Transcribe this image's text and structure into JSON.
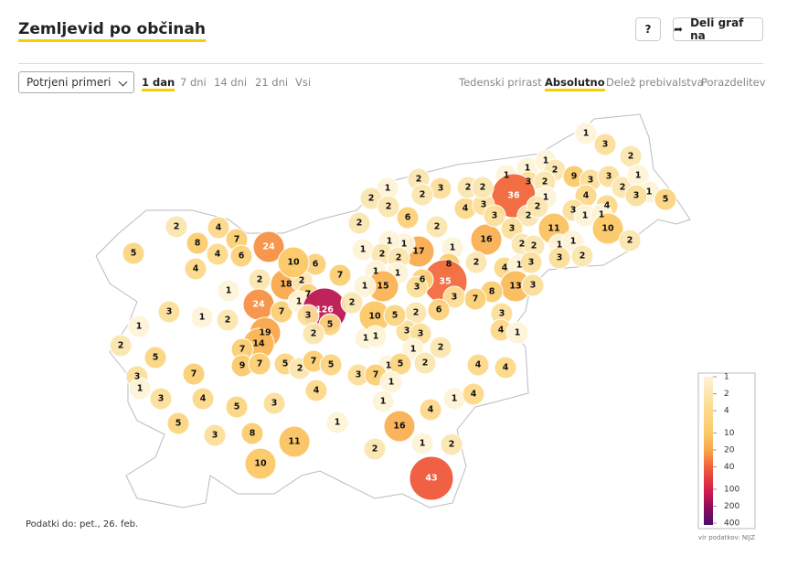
{
  "header": {
    "title": "Zemljevid po občinah",
    "help": "?",
    "share": "Deli graf na"
  },
  "controls": {
    "select": "Potrjeni primeri",
    "periods": [
      "1 dan",
      "7 dni",
      "14 dni",
      "21 dni",
      "Vsi"
    ],
    "views": [
      "Tedenski prirast",
      "Absolutno",
      "Delež prebivalstva",
      "Porazdelitev"
    ]
  },
  "map": {
    "type": "choropleth",
    "values": [
      1,
      3,
      2,
      1,
      1,
      1,
      2,
      3,
      2,
      9,
      3,
      3,
      2,
      1,
      1,
      5,
      3,
      4,
      4,
      3,
      36,
      1,
      2,
      2,
      11,
      3,
      2,
      2,
      1,
      1,
      1,
      1,
      10,
      2,
      2,
      3,
      16,
      4,
      1,
      3,
      13,
      3,
      8,
      7,
      3,
      4,
      1,
      2,
      1,
      8,
      35,
      3,
      6,
      2,
      3,
      3,
      1,
      2,
      4,
      3,
      2,
      2,
      3,
      2,
      17,
      6,
      3,
      2,
      2,
      6,
      1,
      2,
      2,
      2,
      1,
      1,
      1,
      2,
      2,
      1,
      1,
      3,
      15,
      1,
      2,
      4,
      8,
      7,
      4,
      6,
      24,
      5,
      4,
      2,
      18,
      2,
      6,
      7,
      10,
      7,
      1,
      24,
      7,
      1,
      126,
      2,
      5,
      3,
      2,
      3,
      1,
      2,
      19,
      14,
      1,
      2,
      5,
      7,
      3,
      7,
      9,
      7,
      5,
      2,
      7,
      5,
      1,
      3,
      4,
      5,
      3,
      4,
      1,
      10,
      5,
      1,
      1,
      3,
      7,
      5,
      2,
      1,
      5,
      3,
      8,
      11,
      1,
      1,
      2,
      4,
      1,
      4,
      4,
      4,
      16,
      1,
      2,
      43,
      10
    ]
  },
  "legend": {
    "ticks": [
      1,
      2,
      4,
      10,
      20,
      40,
      100,
      200,
      400
    ],
    "colors": [
      "#fdf3d7",
      "#fbe6b0",
      "#fcd98a",
      "#fbc866",
      "#f9a448",
      "#f05c3a",
      "#d21d4c",
      "#8e0b5c",
      "#4b0b6e"
    ],
    "source": "vir podatkov: NIJZ"
  },
  "footer": {
    "note": "Podatki do: pet., 26. feb."
  }
}
